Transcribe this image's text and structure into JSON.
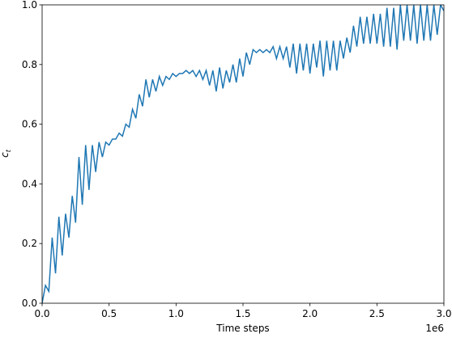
{
  "chart_data": {
    "type": "line",
    "xlabel": "Time steps",
    "x_offset_label": "1e6",
    "ylabel": "c",
    "ylabel_subscript": "t",
    "xlim": [
      0,
      3
    ],
    "ylim": [
      0,
      1
    ],
    "xticks": [
      {
        "value": 0,
        "label": "0.0"
      },
      0.5,
      {
        "value": 1,
        "label": "1.0"
      },
      1.5,
      {
        "value": 2,
        "label": "2.0"
      },
      2.5,
      {
        "value": 3,
        "label": "3.0"
      }
    ],
    "yticks": [
      {
        "value": 0,
        "label": "0.0"
      },
      0.2,
      0.4,
      0.6,
      0.8,
      {
        "value": 1,
        "label": "1.0"
      }
    ],
    "grid": false,
    "x": [
      0,
      0.025,
      0.05,
      0.075,
      0.1,
      0.125,
      0.15,
      0.175,
      0.2,
      0.225,
      0.25,
      0.275,
      0.3,
      0.325,
      0.35,
      0.375,
      0.4,
      0.425,
      0.45,
      0.475,
      0.5,
      0.525,
      0.55,
      0.575,
      0.6,
      0.625,
      0.65,
      0.675,
      0.7,
      0.725,
      0.75,
      0.775,
      0.8,
      0.825,
      0.85,
      0.875,
      0.9,
      0.925,
      0.95,
      0.975,
      1,
      1.025,
      1.05,
      1.075,
      1.1,
      1.125,
      1.15,
      1.175,
      1.2,
      1.225,
      1.25,
      1.275,
      1.3,
      1.325,
      1.35,
      1.375,
      1.4,
      1.425,
      1.45,
      1.475,
      1.5,
      1.525,
      1.55,
      1.575,
      1.6,
      1.625,
      1.65,
      1.675,
      1.7,
      1.725,
      1.75,
      1.775,
      1.8,
      1.825,
      1.85,
      1.875,
      1.9,
      1.925,
      1.95,
      1.975,
      2,
      2.025,
      2.05,
      2.075,
      2.1,
      2.125,
      2.15,
      2.175,
      2.2,
      2.225,
      2.25,
      2.275,
      2.3,
      2.325,
      2.35,
      2.375,
      2.4,
      2.425,
      2.45,
      2.475,
      2.5,
      2.525,
      2.55,
      2.575,
      2.6,
      2.625,
      2.65,
      2.675,
      2.7,
      2.725,
      2.75,
      2.775,
      2.8,
      2.825,
      2.85,
      2.875,
      2.9,
      2.925,
      2.95,
      2.975,
      3
    ],
    "series": [
      {
        "color": "#1f77b4",
        "values": [
          0,
          0.06,
          0.04,
          0.22,
          0.1,
          0.29,
          0.16,
          0.3,
          0.22,
          0.36,
          0.27,
          0.49,
          0.33,
          0.53,
          0.38,
          0.53,
          0.44,
          0.54,
          0.49,
          0.54,
          0.53,
          0.55,
          0.55,
          0.57,
          0.56,
          0.6,
          0.59,
          0.65,
          0.62,
          0.7,
          0.66,
          0.75,
          0.69,
          0.75,
          0.71,
          0.76,
          0.73,
          0.76,
          0.75,
          0.77,
          0.76,
          0.77,
          0.77,
          0.78,
          0.77,
          0.78,
          0.76,
          0.78,
          0.75,
          0.78,
          0.73,
          0.78,
          0.71,
          0.79,
          0.72,
          0.78,
          0.74,
          0.8,
          0.74,
          0.82,
          0.76,
          0.84,
          0.8,
          0.85,
          0.84,
          0.85,
          0.84,
          0.85,
          0.84,
          0.86,
          0.82,
          0.86,
          0.82,
          0.86,
          0.79,
          0.87,
          0.77,
          0.87,
          0.78,
          0.87,
          0.77,
          0.87,
          0.79,
          0.88,
          0.76,
          0.88,
          0.78,
          0.88,
          0.78,
          0.88,
          0.82,
          0.89,
          0.84,
          0.93,
          0.86,
          0.96,
          0.87,
          0.96,
          0.87,
          0.97,
          0.87,
          0.97,
          0.86,
          0.99,
          0.86,
          0.99,
          0.85,
          1,
          0.88,
          1,
          0.88,
          1,
          0.87,
          1,
          0.88,
          1,
          0.88,
          1,
          0.9,
          1,
          0.98
        ]
      }
    ]
  }
}
